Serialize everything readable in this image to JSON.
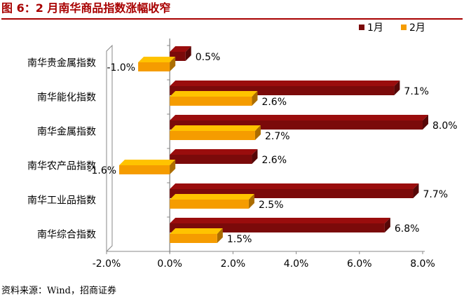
{
  "figure": {
    "title": "图 6：2 月南华商品指数涨幅收窄",
    "source": "资料来源：Wind，招商证券"
  },
  "chart_data": {
    "type": "bar",
    "orientation": "horizontal",
    "categories": [
      "南华贵金属指数",
      "南华能化指数",
      "南华金属指数",
      "南华农产品指数",
      "南华工业品指数",
      "南华综合指数"
    ],
    "series": [
      {
        "name": "1月",
        "values": [
          0.5,
          7.1,
          8.0,
          2.6,
          7.7,
          6.8
        ],
        "labels": [
          "0.5%",
          "7.1%",
          "8.0%",
          "2.6%",
          "7.7%",
          "6.8%"
        ],
        "color": "#7b0a0a"
      },
      {
        "name": "2月",
        "values": [
          -1.0,
          2.6,
          2.7,
          -1.6,
          2.5,
          1.5
        ],
        "labels": [
          "-1.0%",
          "2.6%",
          "2.7%",
          "-1.6%",
          "2.5%",
          "1.5%"
        ],
        "color": "#f59c00"
      }
    ],
    "xlim": [
      -2.0,
      8.0
    ],
    "xticks": [
      -2.0,
      0.0,
      2.0,
      4.0,
      6.0,
      8.0
    ],
    "xtick_labels": [
      "-2.0%",
      "0.0%",
      "2.0%",
      "4.0%",
      "6.0%",
      "8.0%"
    ],
    "legend": "top-right",
    "grid": false,
    "style": "3d-bars"
  }
}
